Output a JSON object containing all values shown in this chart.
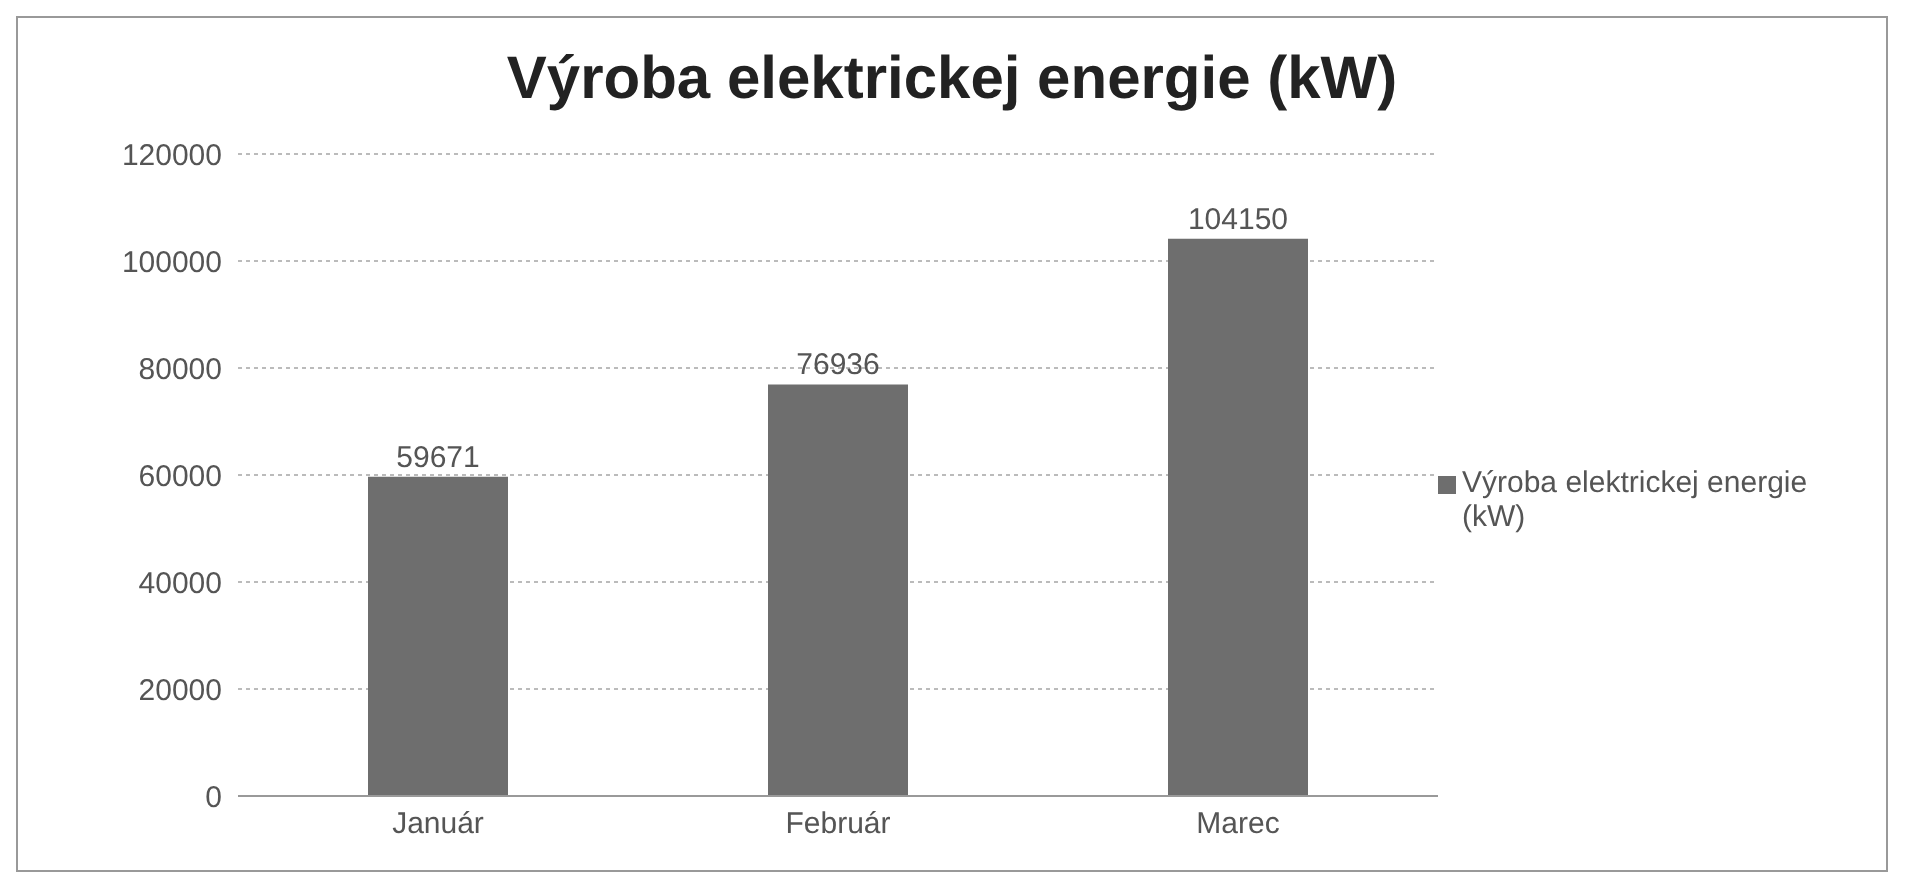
{
  "chart_data": {
    "type": "bar",
    "title": "Výroba elektrickej energie (kW)",
    "categories": [
      "Január",
      "Február",
      "Marec"
    ],
    "series": [
      {
        "name": "Výroba elektrickej energie (kW)",
        "color": "#6e6e6e",
        "values": [
          59671,
          76936,
          104150
        ]
      }
    ],
    "ylim": [
      0,
      120000
    ],
    "yticks": [
      0,
      20000,
      40000,
      60000,
      80000,
      100000,
      120000
    ],
    "grid": "y",
    "legend": "right",
    "data_labels": true
  }
}
